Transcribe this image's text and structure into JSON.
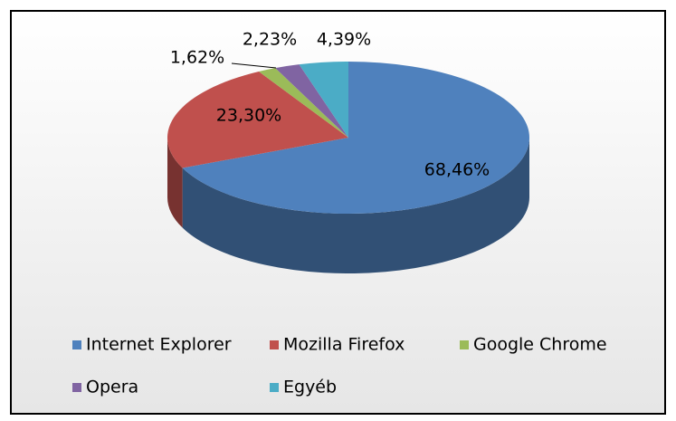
{
  "chart_data": {
    "type": "pie",
    "categories": [
      "Internet Explorer",
      "Mozilla Firefox",
      "Google Chrome",
      "Opera",
      "Egyéb"
    ],
    "values": [
      68.46,
      23.3,
      1.62,
      2.23,
      4.39
    ],
    "value_labels": [
      "68,46%",
      "23,30%",
      "1,62%",
      "2,23%",
      "4,39%"
    ],
    "colors": [
      "#4f81bd",
      "#c0504d",
      "#9bbb59",
      "#8064a2",
      "#4bacc6"
    ],
    "legend": "bottom"
  }
}
